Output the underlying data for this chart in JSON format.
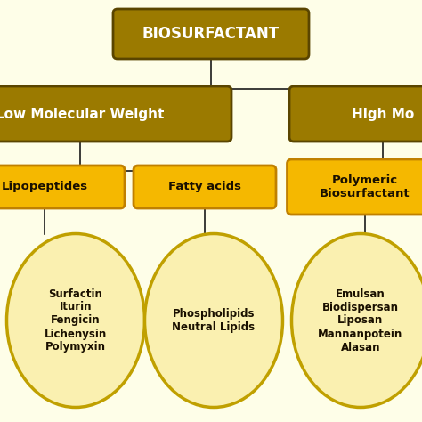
{
  "bg_color": "#FEFEE8",
  "box_dark_color": "#9B7A00",
  "box_dark_edge": "#5a4500",
  "box_light_color": "#F5B800",
  "box_light_edge": "#C08000",
  "ellipse_fill": "#FAF0B0",
  "ellipse_edge": "#C0A000",
  "line_color": "#1a1a1a",
  "text_white": "#FFFFFF",
  "text_dark": "#1a1000",
  "title": "BIOSURFACTANT",
  "low_mw_label": "Low Molecular Weight",
  "high_mw_label": "High Mo",
  "sub_low_1": "Lipopeptides",
  "sub_low_2": "Fatty acids",
  "sub_high_1": "Polymeric\nBiosurfactant",
  "ellipse_low_1": "Surfactin\nIturin\nFengicin\nLichenysin\nPolymyxin",
  "ellipse_low_2": "Phospholipids\nNeutral Lipids",
  "ellipse_high_1": "Emulsan\nBiodispersan\nLiposan\nMannanpotein\nAlasan",
  "figsize": [
    4.74,
    4.74
  ],
  "dpi": 100
}
